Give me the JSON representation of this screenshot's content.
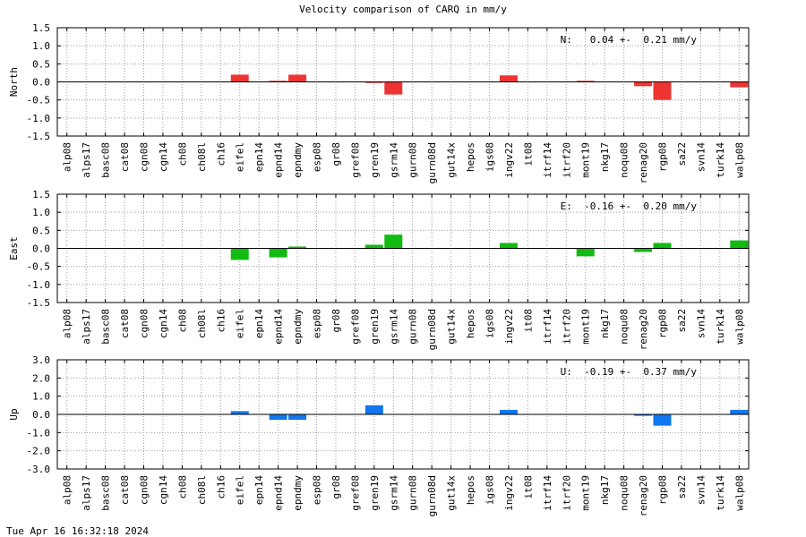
{
  "page": {
    "footer_timestamp": "Tue Apr 16 16:32:18 2024"
  },
  "chart_data": {
    "type": "bar",
    "title": "Velocity comparison of CARQ in mm/y",
    "categories": [
      "alp08",
      "alps17",
      "basc08",
      "cat08",
      "cgn08",
      "cgn14",
      "ch08",
      "ch08l",
      "ch16",
      "eifel",
      "epn14",
      "epnd14",
      "epndmy",
      "esp08",
      "gr08",
      "gref08",
      "gren19",
      "gsrm14",
      "gurn08",
      "gurn08d",
      "gut14x",
      "hepos",
      "igs08",
      "ingv22",
      "it08",
      "itrf14",
      "itrf20",
      "mont19",
      "nkg17",
      "noqu08",
      "renag20",
      "rgp08",
      "sa22",
      "svn14",
      "turk14",
      "walp08"
    ],
    "panels": [
      {
        "ylabel": "North",
        "annotation": "N:   0.04 +-  0.21 mm/y",
        "color": "#ee3333",
        "ylim": [
          -1.5,
          1.5
        ],
        "ytick_values": [
          1.5,
          1.0,
          0.5,
          0.0,
          -0.5,
          -1.0,
          -1.5
        ],
        "ytick_labels": [
          "1.5",
          "1.0",
          "0.5",
          "0.0",
          "-0.5",
          "-1.0",
          "-1.5"
        ],
        "values": [
          0,
          0,
          0,
          0,
          0,
          0,
          0,
          0,
          0,
          0.2,
          0,
          0.03,
          0.2,
          0,
          0,
          0,
          -0.03,
          -0.35,
          0,
          0,
          0,
          0,
          0,
          0.18,
          0,
          0,
          0,
          0.03,
          0,
          0,
          -0.12,
          -0.5,
          0,
          0,
          0,
          -0.15
        ]
      },
      {
        "ylabel": "East",
        "annotation": "E:  -0.16 +-  0.20 mm/y",
        "color": "#11bb11",
        "ylim": [
          -1.5,
          1.5
        ],
        "ytick_values": [
          1.5,
          1.0,
          0.5,
          0.0,
          -0.5,
          -1.0,
          -1.5
        ],
        "ytick_labels": [
          "1.5",
          "1.0",
          "0.5",
          "0.0",
          "-0.5",
          "-1.0",
          "-1.5"
        ],
        "values": [
          0,
          0,
          0,
          0,
          0,
          0,
          0,
          0,
          0,
          -0.32,
          0,
          -0.25,
          0.05,
          0,
          0,
          0,
          0.1,
          0.38,
          0,
          0,
          0,
          0,
          0,
          0.15,
          0,
          0,
          0,
          -0.22,
          0,
          0,
          -0.1,
          0.15,
          0,
          0,
          0,
          0.22
        ]
      },
      {
        "ylabel": "Up",
        "annotation": "U:  -0.19 +-  0.37 mm/y",
        "color": "#1177ee",
        "ylim": [
          -3.0,
          3.0
        ],
        "ytick_values": [
          3.0,
          2.0,
          1.0,
          0.0,
          -1.0,
          -2.0,
          -3.0
        ],
        "ytick_labels": [
          "3.0",
          "2.0",
          "1.0",
          "0.0",
          "-1.0",
          "-2.0",
          "-3.0"
        ],
        "values": [
          0,
          0,
          0,
          0,
          0,
          0,
          0,
          0,
          0,
          0.18,
          0,
          -0.3,
          -0.3,
          0,
          0,
          0,
          0.5,
          0,
          0,
          0,
          0,
          0,
          0,
          0.25,
          0,
          0,
          0,
          0,
          0,
          0,
          -0.08,
          -0.62,
          0,
          0,
          0,
          0.25
        ]
      }
    ],
    "grid": true
  }
}
